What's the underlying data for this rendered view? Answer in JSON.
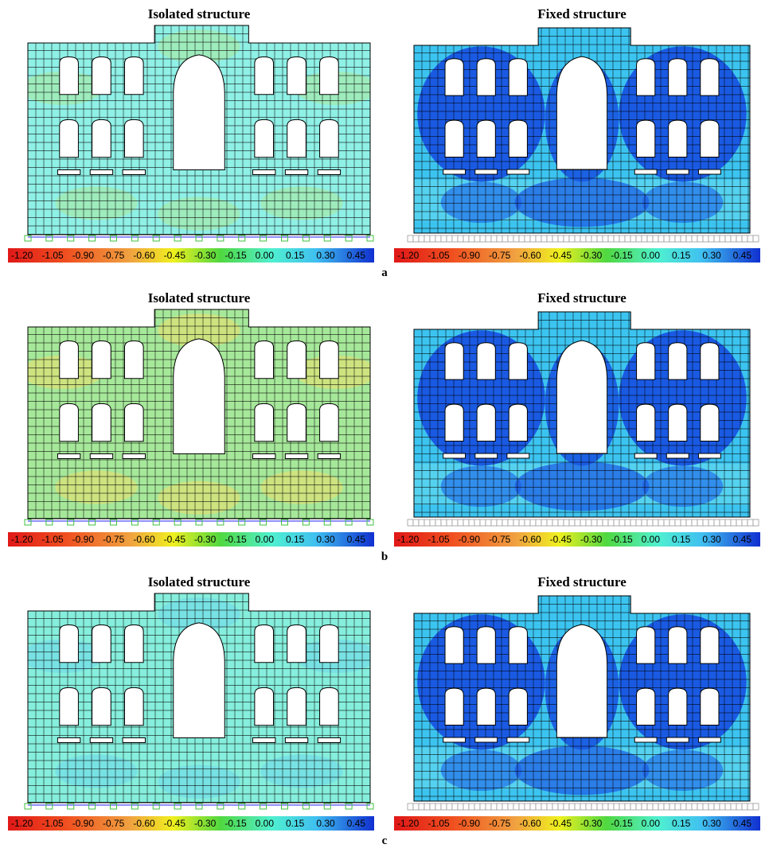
{
  "figure": {
    "panels": [
      {
        "title": "Isolated structure"
      },
      {
        "title": "Fixed structure"
      },
      {
        "title": "Isolated structure"
      },
      {
        "title": "Fixed structure"
      },
      {
        "title": "Isolated structure"
      },
      {
        "title": "Fixed structure"
      }
    ],
    "colorbar_labels": [
      "-1.20",
      "-1.05",
      "-0.90",
      "-0.75",
      "-0.60",
      "-0.45",
      "-0.30",
      "-0.15",
      "0.00",
      "0.15",
      "0.30",
      "0.45"
    ],
    "subfigure_labels": [
      "a",
      "b",
      "c"
    ]
  }
}
